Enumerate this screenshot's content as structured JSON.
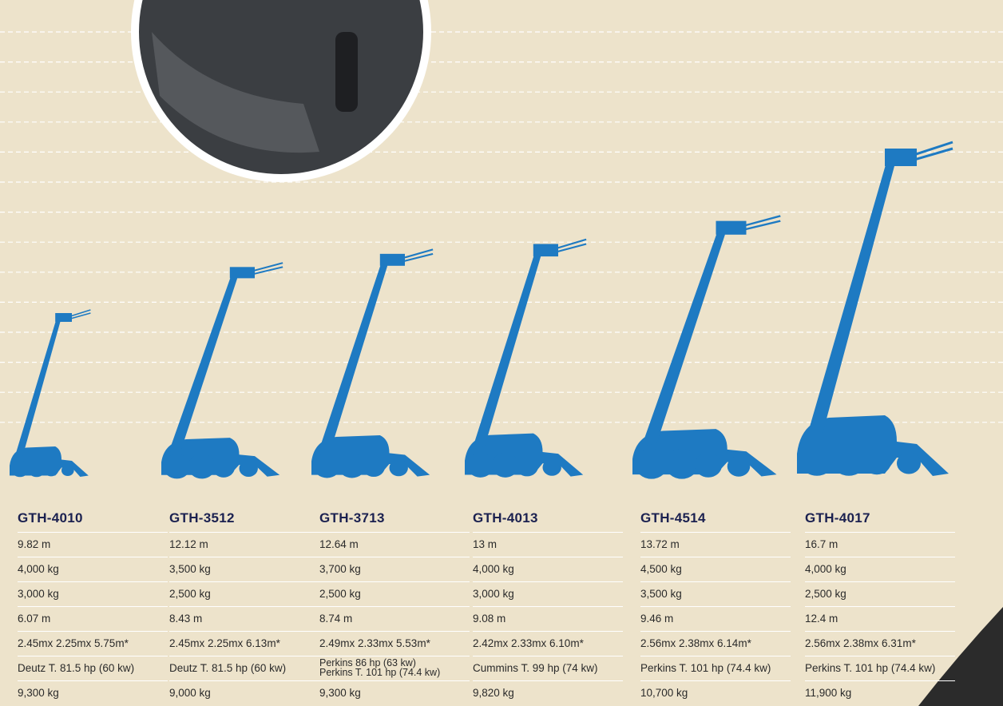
{
  "models": [
    {
      "name": "GTH-4010",
      "specs": [
        "9.82 m",
        "4,000 kg",
        "3,000 kg",
        "6.07 m",
        "2.45mx 2.25mx 5.75m*",
        "Deutz T. 81.5 hp (60 kw)",
        "9,300 kg"
      ]
    },
    {
      "name": "GTH-3512",
      "specs": [
        "12.12 m",
        "3,500 kg",
        "2,500 kg",
        "8.43 m",
        "2.45mx 2.25mx 6.13m*",
        "Deutz T. 81.5 hp (60 kw)",
        "9,000 kg"
      ]
    },
    {
      "name": "GTH-3713",
      "specs": [
        "12.64 m",
        "3,700 kg",
        "2,500 kg",
        "8.74 m",
        "2.49mx 2.33mx 5.53m*",
        [
          "Perkins 86 hp (63 kw)",
          "Perkins T. 101 hp (74.4 kw)"
        ],
        "9,300 kg"
      ]
    },
    {
      "name": "GTH-4013",
      "specs": [
        "13 m",
        "4,000 kg",
        "3,000 kg",
        "9.08 m",
        "2.42mx 2.33mx 6.10m*",
        "Cummins T. 99 hp (74 kw)",
        "9,820 kg"
      ]
    },
    {
      "name": "GTH-4514",
      "specs": [
        "13.72 m",
        "4,500 kg",
        "3,500 kg",
        "9.46 m",
        "2.56mx 2.38mx 6.14m*",
        "Perkins T. 101 hp (74.4 kw)",
        "10,700 kg"
      ]
    },
    {
      "name": "GTH-4017",
      "specs": [
        "16.7 m",
        "4,000 kg",
        "2,500 kg",
        "12.4 m",
        "2.56mx 2.38mx 6.31m*",
        "Perkins T. 101 hp (74.4 kw)",
        "11,900 kg"
      ]
    }
  ]
}
